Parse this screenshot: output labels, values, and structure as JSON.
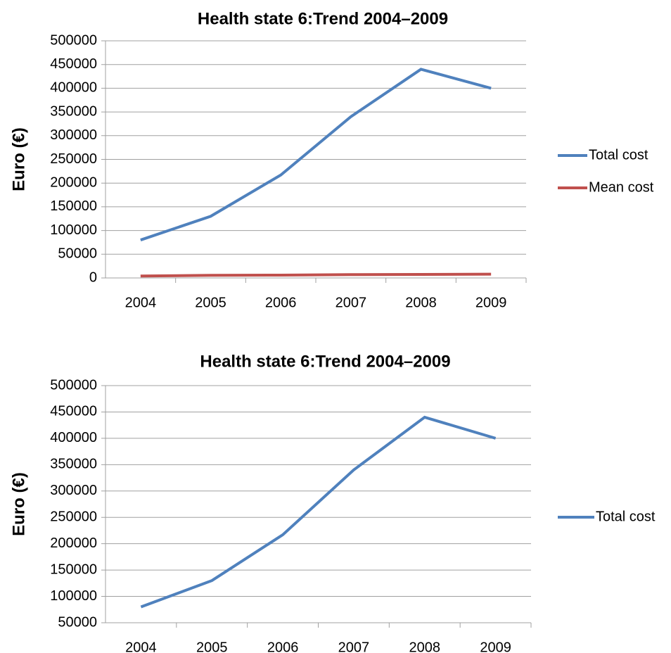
{
  "chart_data": [
    {
      "type": "line",
      "title": "Health state 6:Trend 2004–2009",
      "ylabel": "Euro (€)",
      "categories": [
        "2004",
        "2005",
        "2006",
        "2007",
        "2008",
        "2009"
      ],
      "series": [
        {
          "name": "Total cost",
          "color": "#4f81bd",
          "values": [
            80000,
            130000,
            217000,
            340000,
            440000,
            400000
          ]
        },
        {
          "name": "Mean cost",
          "color": "#c0504d",
          "values": [
            4000,
            5500,
            6000,
            7000,
            7500,
            8000
          ]
        }
      ],
      "ylim": [
        0,
        500000
      ],
      "yticks": [
        0,
        50000,
        100000,
        150000,
        200000,
        250000,
        300000,
        350000,
        400000,
        450000,
        500000
      ],
      "grid": true,
      "legend": "right"
    },
    {
      "type": "line",
      "title": "Health state 6:Trend 2004–2009",
      "ylabel": "Euro (€)",
      "categories": [
        "2004",
        "2005",
        "2006",
        "2007",
        "2008",
        "2009"
      ],
      "series": [
        {
          "name": "Total cost",
          "color": "#4f81bd",
          "values": [
            80000,
            130000,
            217000,
            340000,
            440000,
            400000
          ]
        }
      ],
      "ylim": [
        50000,
        500000
      ],
      "yticks": [
        50000,
        100000,
        150000,
        200000,
        250000,
        300000,
        350000,
        400000,
        450000,
        500000
      ],
      "grid": true,
      "legend": "right"
    }
  ]
}
